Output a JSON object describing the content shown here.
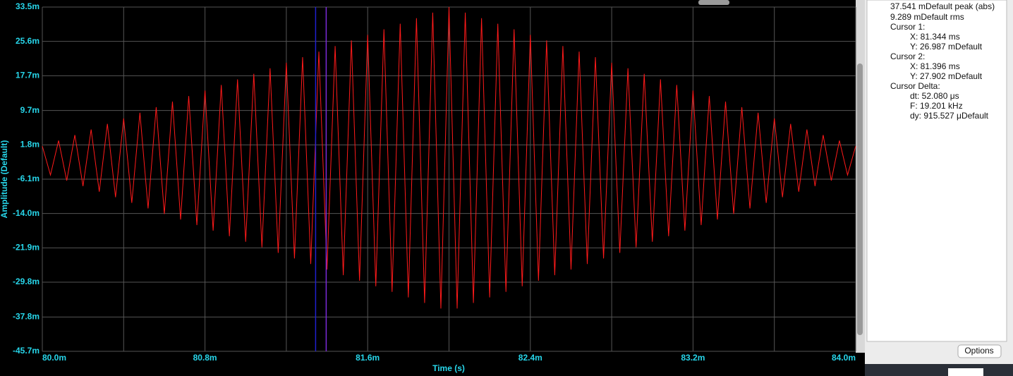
{
  "chart_data": {
    "type": "line",
    "x_label": "Time (s)",
    "y_label": "Amplitude (Default)",
    "xlim": [
      0.08,
      0.084
    ],
    "ylim": [
      -0.0457,
      0.0335
    ],
    "xticks": [
      {
        "value": 0.08,
        "label": "80.0m"
      },
      {
        "value": 0.0808,
        "label": "80.8m"
      },
      {
        "value": 0.0816,
        "label": "81.6m"
      },
      {
        "value": 0.0824,
        "label": "82.4m"
      },
      {
        "value": 0.0832,
        "label": "83.2m"
      },
      {
        "value": 0.084,
        "label": "84.0m"
      }
    ],
    "xminor": [
      0.0804,
      0.0812,
      0.082,
      0.0828,
      0.0836
    ],
    "yticks": [
      {
        "value": 0.0335,
        "label": "33.5m"
      },
      {
        "value": 0.0256,
        "label": "25.6m"
      },
      {
        "value": 0.0177,
        "label": "17.7m"
      },
      {
        "value": 0.0097,
        "label": "9.7m"
      },
      {
        "value": 0.0018,
        "label": "1.8m"
      },
      {
        "value": -0.0061,
        "label": "-6.1m"
      },
      {
        "value": -0.014,
        "label": "-14.0m"
      },
      {
        "value": -0.0219,
        "label": "-21.9m"
      },
      {
        "value": -0.0298,
        "label": "-29.8m"
      },
      {
        "value": -0.0378,
        "label": "-37.8m"
      },
      {
        "value": -0.0457,
        "label": "-45.7m"
      }
    ],
    "grid": true,
    "x": [
      0.08,
      0.08004,
      0.08008,
      0.08012,
      0.08016,
      0.0802,
      0.08024,
      0.08028,
      0.08032,
      0.08036,
      0.0804,
      0.08044,
      0.08048,
      0.08052,
      0.08056,
      0.0806,
      0.08064,
      0.08068,
      0.08072,
      0.08076,
      0.0808,
      0.08084,
      0.08088,
      0.08092,
      0.08096,
      0.081,
      0.08104,
      0.08108,
      0.08112,
      0.08116,
      0.0812,
      0.08124,
      0.08128,
      0.08132,
      0.08136,
      0.0814,
      0.08144,
      0.08148,
      0.08152,
      0.08156,
      0.0816,
      0.08164,
      0.08168,
      0.08172,
      0.08176,
      0.0818,
      0.08184,
      0.08188,
      0.08192,
      0.08196,
      0.082,
      0.08204,
      0.08208,
      0.08212,
      0.08216,
      0.0822,
      0.08224,
      0.08228,
      0.08232,
      0.08236,
      0.0824,
      0.08244,
      0.08248,
      0.08252,
      0.08256,
      0.0826,
      0.08264,
      0.08268,
      0.08272,
      0.08276,
      0.0828,
      0.08284,
      0.08288,
      0.08292,
      0.08296,
      0.083,
      0.08304,
      0.08308,
      0.08312,
      0.08316,
      0.0832,
      0.08324,
      0.08328,
      0.08332,
      0.08336,
      0.0834,
      0.08344,
      0.08348,
      0.08352,
      0.08356,
      0.0836,
      0.08364,
      0.08368,
      0.08372,
      0.08376,
      0.0838,
      0.08384,
      0.08388,
      0.08392,
      0.08396,
      0.084
    ],
    "series": [
      {
        "color": "#ff1a1a",
        "values": [
          0.0015,
          -0.00514,
          0.00278,
          -0.00642,
          0.00406,
          -0.0077,
          0.00534,
          -0.00898,
          0.00662,
          -0.01026,
          0.0079,
          -0.01154,
          0.00918,
          -0.01282,
          0.01046,
          -0.0141,
          0.01174,
          -0.01538,
          0.01302,
          -0.01666,
          0.0143,
          -0.01794,
          0.01558,
          -0.01922,
          0.01686,
          -0.0205,
          0.01814,
          -0.02178,
          0.01942,
          -0.02306,
          0.0207,
          -0.02434,
          0.02198,
          -0.02562,
          0.02326,
          -0.0269,
          0.02454,
          -0.02818,
          0.02582,
          -0.02946,
          0.0271,
          -0.03074,
          0.02838,
          -0.03202,
          0.02966,
          -0.0333,
          0.03094,
          -0.03458,
          0.03222,
          -0.03586,
          0.0335,
          -0.03586,
          0.03222,
          -0.03458,
          0.03094,
          -0.0333,
          0.02966,
          -0.03202,
          0.02838,
          -0.03074,
          0.0271,
          -0.02946,
          0.02582,
          -0.02818,
          0.02454,
          -0.0269,
          0.02326,
          -0.02562,
          0.02198,
          -0.02434,
          0.0207,
          -0.02306,
          0.01942,
          -0.02178,
          0.01814,
          -0.0205,
          0.01686,
          -0.01922,
          0.01558,
          -0.01794,
          0.0143,
          -0.01666,
          0.01302,
          -0.01538,
          0.01174,
          -0.0141,
          0.01046,
          -0.01282,
          0.00918,
          -0.01154,
          0.0079,
          -0.01026,
          0.00662,
          -0.00898,
          0.00534,
          -0.0077,
          0.00406,
          -0.00642,
          0.00278,
          -0.00514,
          0.0015
        ]
      }
    ],
    "cursors": [
      {
        "x": 0.081344,
        "color": "#2020d0"
      },
      {
        "x": 0.081396,
        "color": "#7a2ad8"
      }
    ]
  },
  "panel": {
    "summary": [
      "37.541 mDefault peak (abs)",
      "9.289 mDefault rms"
    ],
    "cursor_1": {
      "title": "Cursor 1:",
      "x": "X: 81.344 ms",
      "y": "Y: 26.987 mDefault"
    },
    "cursor_2": {
      "title": "Cursor 2:",
      "x": "X: 81.396 ms",
      "y": "Y: 27.902 mDefault"
    },
    "delta": {
      "title": "Cursor Delta:",
      "dt": "dt: 52.080 μs",
      "f": "F: 19.201 kHz",
      "dy": "dy: 915.527 μDefault"
    },
    "button": "Options"
  }
}
